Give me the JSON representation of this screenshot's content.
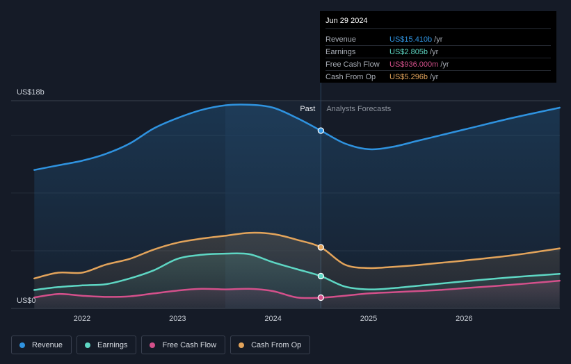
{
  "chart_data": {
    "type": "line",
    "y_axis_labels": {
      "top": "US$18b",
      "bottom": "US$0"
    },
    "ylim": [
      0,
      18
    ],
    "x_ticks": [
      "2022",
      "2023",
      "2024",
      "2025",
      "2026"
    ],
    "section_labels": {
      "past": "Past",
      "forecast": "Analysts Forecasts"
    },
    "series": [
      {
        "name": "Revenue",
        "color": "#2f93e0",
        "fill": true,
        "points": [
          [
            2021.5,
            12.0
          ],
          [
            2021.75,
            12.4
          ],
          [
            2022.0,
            12.8
          ],
          [
            2022.25,
            13.4
          ],
          [
            2022.5,
            14.3
          ],
          [
            2022.75,
            15.6
          ],
          [
            2023.0,
            16.5
          ],
          [
            2023.25,
            17.2
          ],
          [
            2023.5,
            17.6
          ],
          [
            2023.75,
            17.65
          ],
          [
            2024.0,
            17.4
          ],
          [
            2024.25,
            16.5
          ],
          [
            2024.5,
            15.41
          ],
          [
            2024.75,
            14.3
          ],
          [
            2025.0,
            13.8
          ],
          [
            2025.25,
            14.0
          ],
          [
            2025.5,
            14.5
          ],
          [
            2025.75,
            15.0
          ],
          [
            2026.0,
            15.5
          ],
          [
            2026.5,
            16.5
          ],
          [
            2027.0,
            17.4
          ]
        ]
      },
      {
        "name": "Earnings",
        "color": "#5ed7c4",
        "fill": true,
        "points": [
          [
            2021.5,
            1.6
          ],
          [
            2021.75,
            1.85
          ],
          [
            2022.0,
            2.0
          ],
          [
            2022.25,
            2.1
          ],
          [
            2022.5,
            2.6
          ],
          [
            2022.75,
            3.3
          ],
          [
            2023.0,
            4.3
          ],
          [
            2023.25,
            4.65
          ],
          [
            2023.5,
            4.75
          ],
          [
            2023.75,
            4.7
          ],
          [
            2024.0,
            4.0
          ],
          [
            2024.25,
            3.4
          ],
          [
            2024.5,
            2.805
          ],
          [
            2024.75,
            1.9
          ],
          [
            2025.0,
            1.65
          ],
          [
            2025.25,
            1.75
          ],
          [
            2025.5,
            1.95
          ],
          [
            2025.75,
            2.15
          ],
          [
            2026.0,
            2.35
          ],
          [
            2026.5,
            2.7
          ],
          [
            2027.0,
            3.0
          ]
        ]
      },
      {
        "name": "Free Cash Flow",
        "color": "#d4508b",
        "fill": true,
        "points": [
          [
            2021.5,
            0.95
          ],
          [
            2021.75,
            1.25
          ],
          [
            2022.0,
            1.1
          ],
          [
            2022.25,
            1.0
          ],
          [
            2022.5,
            1.05
          ],
          [
            2022.75,
            1.3
          ],
          [
            2023.0,
            1.55
          ],
          [
            2023.25,
            1.7
          ],
          [
            2023.5,
            1.65
          ],
          [
            2023.75,
            1.7
          ],
          [
            2024.0,
            1.5
          ],
          [
            2024.25,
            0.95
          ],
          [
            2024.5,
            0.936
          ],
          [
            2024.75,
            1.1
          ],
          [
            2025.0,
            1.3
          ],
          [
            2025.25,
            1.4
          ],
          [
            2025.5,
            1.5
          ],
          [
            2025.75,
            1.6
          ],
          [
            2026.0,
            1.75
          ],
          [
            2026.5,
            2.05
          ],
          [
            2027.0,
            2.4
          ]
        ]
      },
      {
        "name": "Cash From Op",
        "color": "#e3a45b",
        "fill": true,
        "points": [
          [
            2021.5,
            2.6
          ],
          [
            2021.75,
            3.1
          ],
          [
            2022.0,
            3.1
          ],
          [
            2022.25,
            3.8
          ],
          [
            2022.5,
            4.3
          ],
          [
            2022.75,
            5.1
          ],
          [
            2023.0,
            5.7
          ],
          [
            2023.25,
            6.05
          ],
          [
            2023.5,
            6.3
          ],
          [
            2023.75,
            6.55
          ],
          [
            2024.0,
            6.45
          ],
          [
            2024.25,
            5.95
          ],
          [
            2024.5,
            5.296
          ],
          [
            2024.75,
            3.8
          ],
          [
            2025.0,
            3.5
          ],
          [
            2025.25,
            3.6
          ],
          [
            2025.5,
            3.75
          ],
          [
            2025.75,
            3.95
          ],
          [
            2026.0,
            4.15
          ],
          [
            2026.5,
            4.6
          ],
          [
            2027.0,
            5.2
          ]
        ]
      }
    ],
    "highlight_x": 2024.5,
    "past_shade_start": 2023.5
  },
  "tooltip": {
    "date": "Jun 29 2024",
    "rows": [
      {
        "label": "Revenue",
        "value": "US$15.410b",
        "unit": "/yr",
        "color": "#2f93e0"
      },
      {
        "label": "Earnings",
        "value": "US$2.805b",
        "unit": "/yr",
        "color": "#5ed7c4"
      },
      {
        "label": "Free Cash Flow",
        "value": "US$936.000m",
        "unit": "/yr",
        "color": "#d4508b"
      },
      {
        "label": "Cash From Op",
        "value": "US$5.296b",
        "unit": "/yr",
        "color": "#e3a45b"
      }
    ]
  },
  "legend": [
    {
      "label": "Revenue",
      "color": "#2f93e0"
    },
    {
      "label": "Earnings",
      "color": "#5ed7c4"
    },
    {
      "label": "Free Cash Flow",
      "color": "#d4508b"
    },
    {
      "label": "Cash From Op",
      "color": "#e3a45b"
    }
  ]
}
